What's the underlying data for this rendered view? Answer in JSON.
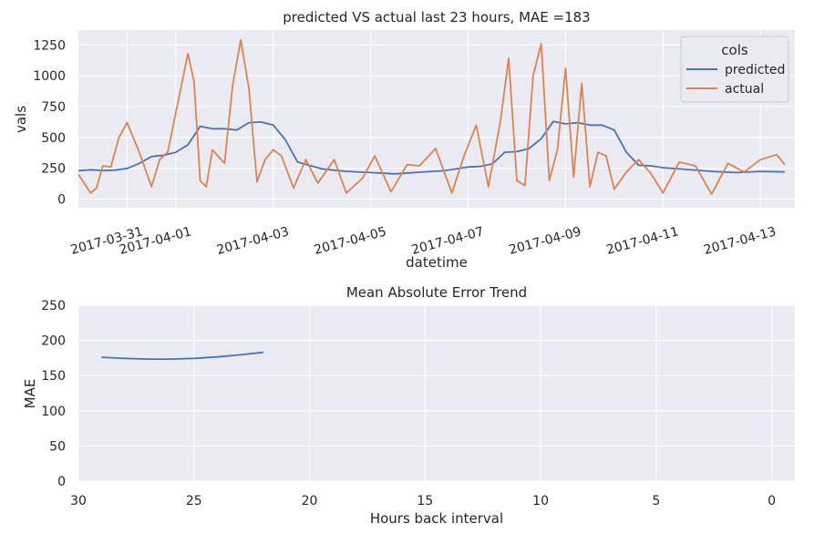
{
  "colors": {
    "predicted": "#4c72b0",
    "actual": "#dd8452",
    "background": "#eaeaf2",
    "grid": "#ffffff"
  },
  "chart_data": [
    {
      "type": "line",
      "title": "predicted VS actual last 23 hours, MAE =183",
      "xlabel": "datetime",
      "ylabel": "vals",
      "x_tick_labels": [
        "2017-03-31",
        "2017-04-01",
        "2017-04-03",
        "2017-04-05",
        "2017-04-07",
        "2017-04-09",
        "2017-04-11",
        "2017-04-13"
      ],
      "y_ticks": [
        0,
        250,
        500,
        750,
        1000,
        1250
      ],
      "ylim": [
        -70,
        1370
      ],
      "xlim": [
        "2017-03-30T00:00",
        "2017-04-13T17:00"
      ],
      "grid": true,
      "legend": {
        "title": "cols",
        "placement": "upper right"
      },
      "series": [
        {
          "name": "predicted",
          "color": "#4c72b0",
          "x": [
            "2017-03-30T00:00",
            "2017-03-30T06:00",
            "2017-03-30T12:00",
            "2017-03-30T18:00",
            "2017-03-31T00:00",
            "2017-03-31T06:00",
            "2017-03-31T12:00",
            "2017-03-31T18:00",
            "2017-04-01T00:00",
            "2017-04-01T06:00",
            "2017-04-01T12:00",
            "2017-04-01T18:00",
            "2017-04-02T00:00",
            "2017-04-02T06:00",
            "2017-04-02T12:00",
            "2017-04-02T18:00",
            "2017-04-03T00:00",
            "2017-04-03T06:00",
            "2017-04-03T12:00",
            "2017-04-04T00:00",
            "2017-04-04T12:00",
            "2017-04-05T00:00",
            "2017-04-05T12:00",
            "2017-04-06T00:00",
            "2017-04-06T12:00",
            "2017-04-07T00:00",
            "2017-04-07T06:00",
            "2017-04-07T12:00",
            "2017-04-07T18:00",
            "2017-04-08T00:00",
            "2017-04-08T06:00",
            "2017-04-08T12:00",
            "2017-04-08T18:00",
            "2017-04-09T00:00",
            "2017-04-09T06:00",
            "2017-04-09T12:00",
            "2017-04-09T18:00",
            "2017-04-10T00:00",
            "2017-04-10T06:00",
            "2017-04-10T12:00",
            "2017-04-10T18:00",
            "2017-04-11T00:00",
            "2017-04-11T12:00",
            "2017-04-12T00:00",
            "2017-04-12T12:00",
            "2017-04-13T00:00",
            "2017-04-13T12:00"
          ],
          "values": [
            230,
            238,
            232,
            235,
            248,
            290,
            345,
            355,
            380,
            440,
            590,
            570,
            570,
            560,
            620,
            625,
            600,
            480,
            300,
            245,
            225,
            215,
            205,
            218,
            230,
            260,
            265,
            285,
            380,
            385,
            410,
            490,
            630,
            610,
            620,
            600,
            600,
            560,
            380,
            275,
            270,
            255,
            240,
            225,
            215,
            225,
            220
          ]
        },
        {
          "name": "actual",
          "color": "#dd8452",
          "x": [
            "2017-03-30T00:00",
            "2017-03-30T06:00",
            "2017-03-30T09:00",
            "2017-03-30T12:00",
            "2017-03-30T16:00",
            "2017-03-30T20:00",
            "2017-03-31T00:00",
            "2017-03-31T06:00",
            "2017-03-31T12:00",
            "2017-03-31T16:00",
            "2017-03-31T20:00",
            "2017-04-01T02:00",
            "2017-04-01T06:00",
            "2017-04-01T09:00",
            "2017-04-01T12:00",
            "2017-04-01T15:00",
            "2017-04-01T18:00",
            "2017-04-02T00:00",
            "2017-04-02T04:00",
            "2017-04-02T08:00",
            "2017-04-02T12:00",
            "2017-04-02T16:00",
            "2017-04-02T20:00",
            "2017-04-03T00:00",
            "2017-04-03T04:00",
            "2017-04-03T10:00",
            "2017-04-03T16:00",
            "2017-04-03T22:00",
            "2017-04-04T06:00",
            "2017-04-04T12:00",
            "2017-04-04T20:00",
            "2017-04-05T02:00",
            "2017-04-05T10:00",
            "2017-04-05T18:00",
            "2017-04-06T00:00",
            "2017-04-06T08:00",
            "2017-04-06T16:00",
            "2017-04-06T22:00",
            "2017-04-07T04:00",
            "2017-04-07T10:00",
            "2017-04-07T16:00",
            "2017-04-07T20:00",
            "2017-04-08T00:00",
            "2017-04-08T04:00",
            "2017-04-08T08:00",
            "2017-04-08T12:00",
            "2017-04-08T16:00",
            "2017-04-08T20:00",
            "2017-04-09T00:00",
            "2017-04-09T04:00",
            "2017-04-09T08:00",
            "2017-04-09T12:00",
            "2017-04-09T16:00",
            "2017-04-09T20:00",
            "2017-04-10T00:00",
            "2017-04-10T06:00",
            "2017-04-10T12:00",
            "2017-04-10T18:00",
            "2017-04-11T00:00",
            "2017-04-11T08:00",
            "2017-04-11T16:00",
            "2017-04-12T00:00",
            "2017-04-12T08:00",
            "2017-04-12T16:00",
            "2017-04-13T00:00",
            "2017-04-13T08:00",
            "2017-04-13T12:00"
          ],
          "values": [
            200,
            50,
            90,
            270,
            260,
            500,
            620,
            380,
            100,
            320,
            380,
            860,
            1180,
            950,
            150,
            100,
            400,
            290,
            920,
            1290,
            900,
            140,
            320,
            400,
            350,
            90,
            320,
            130,
            320,
            50,
            170,
            350,
            60,
            280,
            270,
            410,
            50,
            350,
            600,
            100,
            640,
            1140,
            150,
            110,
            1000,
            1260,
            150,
            400,
            1060,
            180,
            940,
            100,
            380,
            350,
            80,
            220,
            320,
            210,
            50,
            300,
            270,
            40,
            290,
            220,
            320,
            360,
            280
          ]
        }
      ]
    },
    {
      "type": "line",
      "title": "Mean Absolute Error Trend",
      "xlabel": "Hours back interval",
      "ylabel": "MAE",
      "x_ticks": [
        30,
        25,
        20,
        15,
        10,
        5,
        0
      ],
      "xlim": [
        30,
        -1
      ],
      "y_ticks": [
        0,
        50,
        100,
        150,
        200,
        250
      ],
      "ylim": [
        0,
        250
      ],
      "grid": true,
      "series": [
        {
          "color": "#4c72b0",
          "x": [
            29,
            28,
            27,
            26,
            25,
            24,
            23,
            22
          ],
          "values": [
            176,
            174.5,
            173.5,
            173.5,
            174.5,
            176.5,
            179.5,
            183
          ]
        }
      ]
    }
  ]
}
